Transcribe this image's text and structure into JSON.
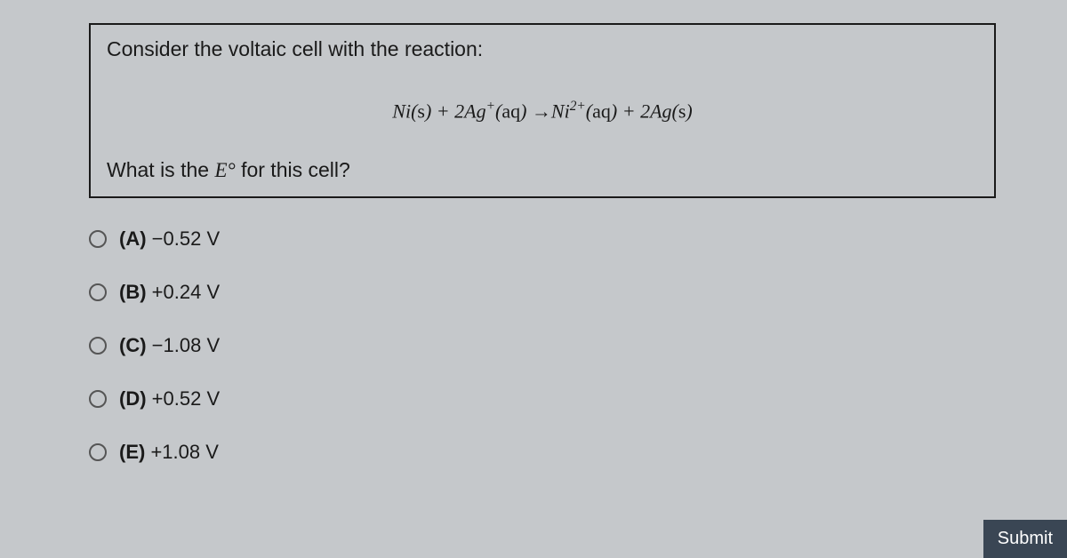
{
  "question": {
    "line1": "Consider the voltaic cell with the reaction:",
    "equation_html": "Ni(<span class='roman'>s</span>) + 2Ag<sup>+</sup>(<span class='roman'>aq</span>) →Ni<sup>2+</sup>(<span class='roman'>aq</span>) + 2Ag(<span class='roman'>s</span>)",
    "line2_prefix": "What is the ",
    "line2_symbol": "E°",
    "line2_suffix": " for this cell?"
  },
  "options": [
    {
      "letter": "(A)",
      "value": "−0.52 V"
    },
    {
      "letter": "(B)",
      "value": "+0.24 V"
    },
    {
      "letter": "(C)",
      "value": "−1.08 V"
    },
    {
      "letter": "(D)",
      "value": "+0.52 V"
    },
    {
      "letter": "(E)",
      "value": "+1.08 V"
    }
  ],
  "submit_label": "Submit",
  "colors": {
    "background": "#c5c8cb",
    "border": "#1a1a1a",
    "text": "#1a1a1a",
    "radio_border": "#555",
    "submit_bg": "#3a4654",
    "submit_text": "#ffffff"
  }
}
